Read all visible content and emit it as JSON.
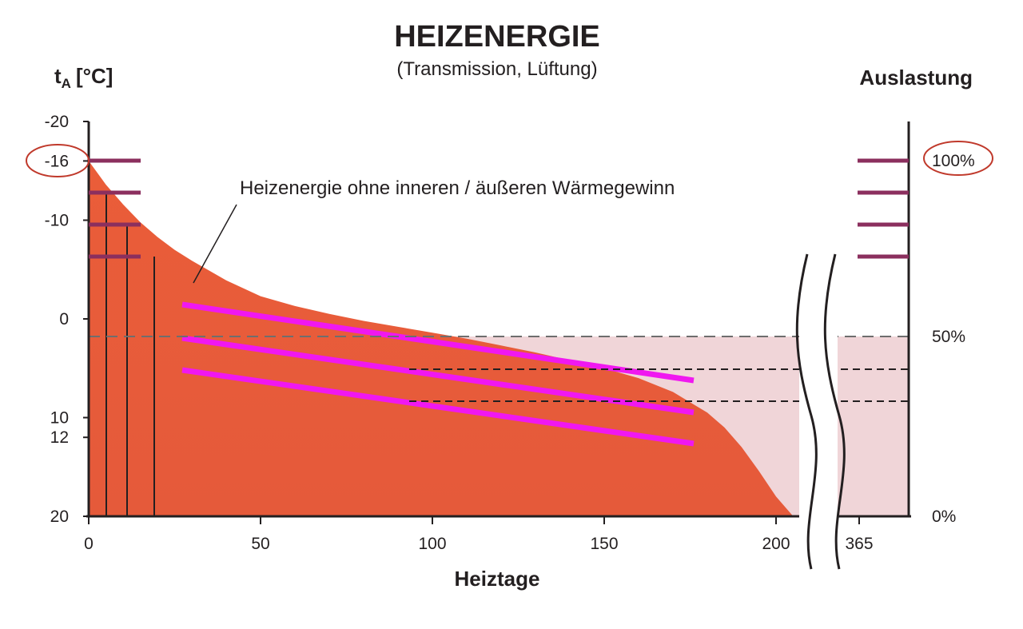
{
  "chart_data": {
    "type": "area",
    "title": "HEIZENERGIE",
    "subtitle": "(Transmission, Lüftung)",
    "xlabel": "Heiztage",
    "ylabel_left": "[°C]",
    "ylabel_left_symbol": "t",
    "ylabel_left_subscript": "A",
    "ylabel_right": "Auslastung",
    "x_ticks": [
      "0",
      "50",
      "100",
      "150",
      "200",
      "365"
    ],
    "y_left_ticks": [
      "-20",
      "-16",
      "-10",
      "0",
      "10",
      "12",
      "20"
    ],
    "y_left_highlight": "-16",
    "y_right_ticks": [
      "100%",
      "50%",
      "0%"
    ],
    "y_right_highlight": "100%",
    "xlim": [
      0,
      220
    ],
    "ylim_left": [
      -20,
      20
    ],
    "y_left_inverted": true,
    "axis_break_after": 200,
    "annotation": "Heizenergie ohne inneren / äußeren Wärmegewinn",
    "series": [
      {
        "values_x": [
          0,
          5,
          10,
          15,
          20,
          25,
          30,
          40,
          50,
          60,
          70,
          80,
          90,
          100,
          110,
          120,
          130,
          140,
          150,
          160,
          170,
          180,
          185,
          190,
          195,
          200,
          205
        ],
        "values_y": [
          -16,
          -13.6,
          -11.6,
          -9.8,
          -8.3,
          -7.0,
          -5.9,
          -3.9,
          -2.3,
          -1.3,
          -0.5,
          0.2,
          0.8,
          1.4,
          2.0,
          2.7,
          3.4,
          4.2,
          5.0,
          6.0,
          7.4,
          9.5,
          11.0,
          13.0,
          15.4,
          18.0,
          20.0
        ]
      },
      {
        "values_x": [
          0,
          211
        ],
        "values_y": [
          2,
          2
        ]
      }
    ],
    "colors": {
      "curve_fill_upper": "#ea5d39",
      "curve_fill_lower": "#e55a3a",
      "background_band": "#f0d5d8",
      "magenta_lines": "#f018f0",
      "purple_ticks": "#8b2f5e",
      "highlight_circle": "#c0392b"
    }
  }
}
